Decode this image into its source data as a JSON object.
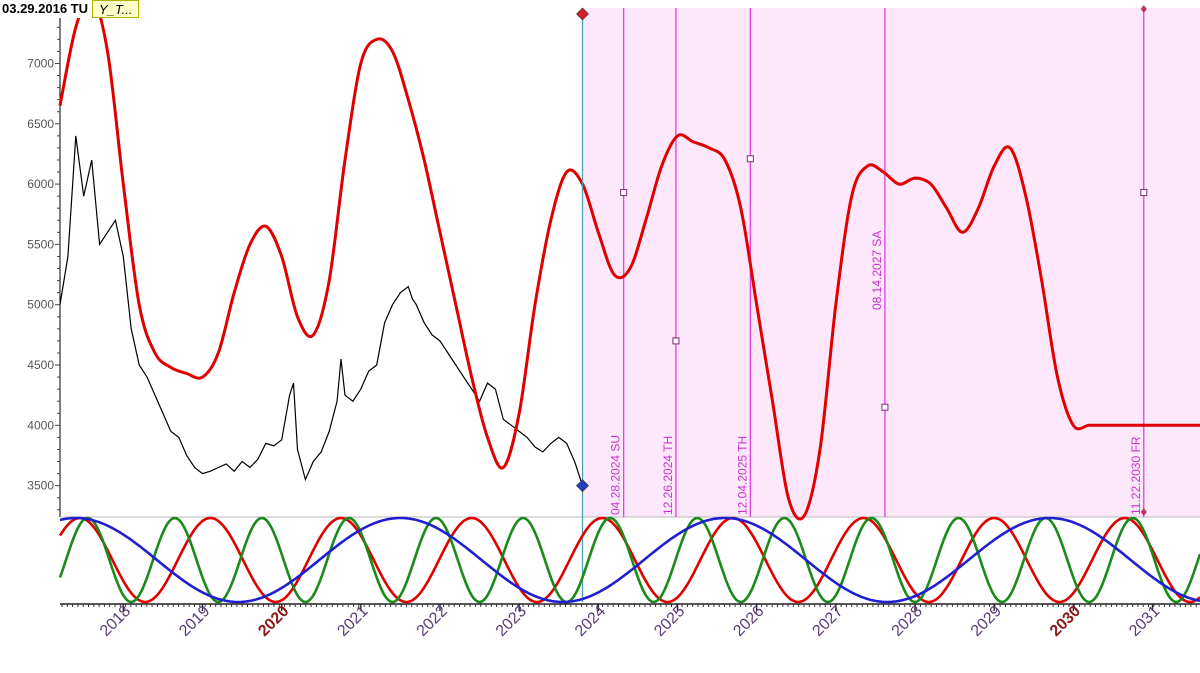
{
  "header": {
    "date_label": "03.29.2016 TU",
    "tag_label": "Y_T..."
  },
  "colors": {
    "price": "#000000",
    "forecast": "#e00000",
    "cycle_red": "#e00000",
    "cycle_green": "#1a8a1a",
    "cycle_blue": "#2020d0",
    "future_shade": "#fde8fb",
    "marker_line": "#e040e0",
    "marker_text": "#cc33cc",
    "cursor_line": "#4aa3b5",
    "year_normal": "#5a3a7a",
    "year_highlight": "#8b1a1a"
  },
  "chart_data": {
    "type": "line",
    "y_ticks": [
      "3500",
      "4000",
      "4500",
      "5000",
      "5500",
      "6000",
      "6500",
      "7000"
    ],
    "ylim": [
      3240,
      7460
    ],
    "xlim": [
      2017.2,
      2031.6
    ],
    "grid": false,
    "x_ticks": [
      {
        "label": "2018",
        "x": 2018.0,
        "highlight": false
      },
      {
        "label": "2019",
        "x": 2019.0,
        "highlight": false
      },
      {
        "label": "2020",
        "x": 2020.0,
        "highlight": true
      },
      {
        "label": "2021",
        "x": 2021.0,
        "highlight": false
      },
      {
        "label": "2022",
        "x": 2022.0,
        "highlight": false
      },
      {
        "label": "2023",
        "x": 2023.0,
        "highlight": false
      },
      {
        "label": "2024",
        "x": 2024.0,
        "highlight": false
      },
      {
        "label": "2025",
        "x": 2025.0,
        "highlight": false
      },
      {
        "label": "2026",
        "x": 2026.0,
        "highlight": false
      },
      {
        "label": "2027",
        "x": 2027.0,
        "highlight": false
      },
      {
        "label": "2028",
        "x": 2028.0,
        "highlight": false
      },
      {
        "label": "2029",
        "x": 2029.0,
        "highlight": false
      },
      {
        "label": "2030",
        "x": 2030.0,
        "highlight": true
      },
      {
        "label": "2031",
        "x": 2031.0,
        "highlight": false
      }
    ],
    "price_series": {
      "x": [
        2017.2,
        2017.3,
        2017.4,
        2017.5,
        2017.6,
        2017.7,
        2017.8,
        2017.9,
        2018.0,
        2018.1,
        2018.2,
        2018.3,
        2018.4,
        2018.5,
        2018.6,
        2018.7,
        2018.8,
        2018.9,
        2019.0,
        2019.1,
        2019.2,
        2019.3,
        2019.4,
        2019.5,
        2019.6,
        2019.7,
        2019.8,
        2019.9,
        2020.0,
        2020.1,
        2020.15,
        2020.2,
        2020.3,
        2020.4,
        2020.5,
        2020.6,
        2020.7,
        2020.75,
        2020.8,
        2020.9,
        2021.0,
        2021.1,
        2021.2,
        2021.3,
        2021.4,
        2021.5,
        2021.6,
        2021.65,
        2021.7,
        2021.8,
        2021.9,
        2022.0,
        2022.1,
        2022.2,
        2022.3,
        2022.4,
        2022.5,
        2022.6,
        2022.7,
        2022.8,
        2022.9,
        2023.0,
        2023.1,
        2023.2,
        2023.3,
        2023.4,
        2023.5,
        2023.6,
        2023.7,
        2023.8
      ],
      "y": [
        5000,
        5400,
        6400,
        5900,
        6200,
        5500,
        5600,
        5700,
        5400,
        4800,
        4500,
        4400,
        4250,
        4100,
        3950,
        3900,
        3750,
        3650,
        3600,
        3620,
        3650,
        3680,
        3620,
        3700,
        3650,
        3720,
        3850,
        3830,
        3880,
        4250,
        4350,
        3800,
        3550,
        3700,
        3780,
        3950,
        4200,
        4550,
        4250,
        4200,
        4300,
        4450,
        4500,
        4850,
        5000,
        5100,
        5150,
        5050,
        5000,
        4850,
        4750,
        4700,
        4600,
        4500,
        4400,
        4300,
        4200,
        4350,
        4300,
        4050,
        4000,
        3950,
        3900,
        3820,
        3780,
        3850,
        3900,
        3850,
        3700,
        3500
      ]
    },
    "forecast_series": {
      "x": [
        2017.2,
        2017.4,
        2017.6,
        2017.8,
        2018.0,
        2018.2,
        2018.4,
        2018.6,
        2018.8,
        2019.0,
        2019.2,
        2019.4,
        2019.6,
        2019.8,
        2020.0,
        2020.2,
        2020.4,
        2020.6,
        2020.8,
        2021.0,
        2021.2,
        2021.4,
        2021.6,
        2021.8,
        2022.0,
        2022.2,
        2022.4,
        2022.6,
        2022.8,
        2023.0,
        2023.2,
        2023.4,
        2023.6,
        2023.8,
        2024.0,
        2024.2,
        2024.4,
        2024.6,
        2024.8,
        2025.0,
        2025.2,
        2025.4,
        2025.6,
        2025.8,
        2026.0,
        2026.2,
        2026.4,
        2026.6,
        2026.8,
        2027.0,
        2027.2,
        2027.4,
        2027.6,
        2027.8,
        2028.0,
        2028.2,
        2028.4,
        2028.6,
        2028.8,
        2029.0,
        2029.2,
        2029.4,
        2029.6,
        2029.8,
        2030.0,
        2030.2,
        2030.4,
        2030.6,
        2030.8,
        2031.0,
        2031.2,
        2031.4,
        2031.6
      ],
      "y": [
        6650,
        7300,
        7550,
        7100,
        6000,
        5000,
        4600,
        4480,
        4430,
        4400,
        4600,
        5100,
        5500,
        5650,
        5400,
        4900,
        4750,
        5200,
        6200,
        7000,
        7200,
        7100,
        6700,
        6200,
        5600,
        5000,
        4400,
        3900,
        3650,
        4100,
        5000,
        5700,
        6100,
        6000,
        5600,
        5250,
        5300,
        5700,
        6150,
        6400,
        6350,
        6300,
        6200,
        5800,
        5000,
        4200,
        3400,
        3250,
        3800,
        5000,
        5900,
        6150,
        6100,
        6000,
        6050,
        6000,
        5800,
        5600,
        5800,
        6150,
        6300,
        5900,
        5200,
        4400,
        4000,
        4000,
        4000,
        4000,
        4000,
        4000,
        4000,
        4000,
        4000
      ]
    },
    "forecast_start_x": 2023.8,
    "markers": [
      {
        "label": "04.28.2024 SU",
        "x": 2024.32,
        "y": 5930
      },
      {
        "label": "12.26.2024 TH",
        "x": 2024.98,
        "y": 4700
      },
      {
        "label": "12.04.2025 TH",
        "x": 2025.92,
        "y": 6210
      },
      {
        "label": "08.14.2027 SA",
        "x": 2027.62,
        "y": 4150
      },
      {
        "label": "11.22.2030 FR",
        "x": 2030.89,
        "y": 5930
      }
    ],
    "cycles": [
      {
        "color": "red",
        "period": 1.65,
        "phase": 2017.45
      },
      {
        "color": "green",
        "period": 1.1,
        "phase": 2017.55
      },
      {
        "color": "blue",
        "period": 4.1,
        "phase": 2017.4
      }
    ]
  }
}
